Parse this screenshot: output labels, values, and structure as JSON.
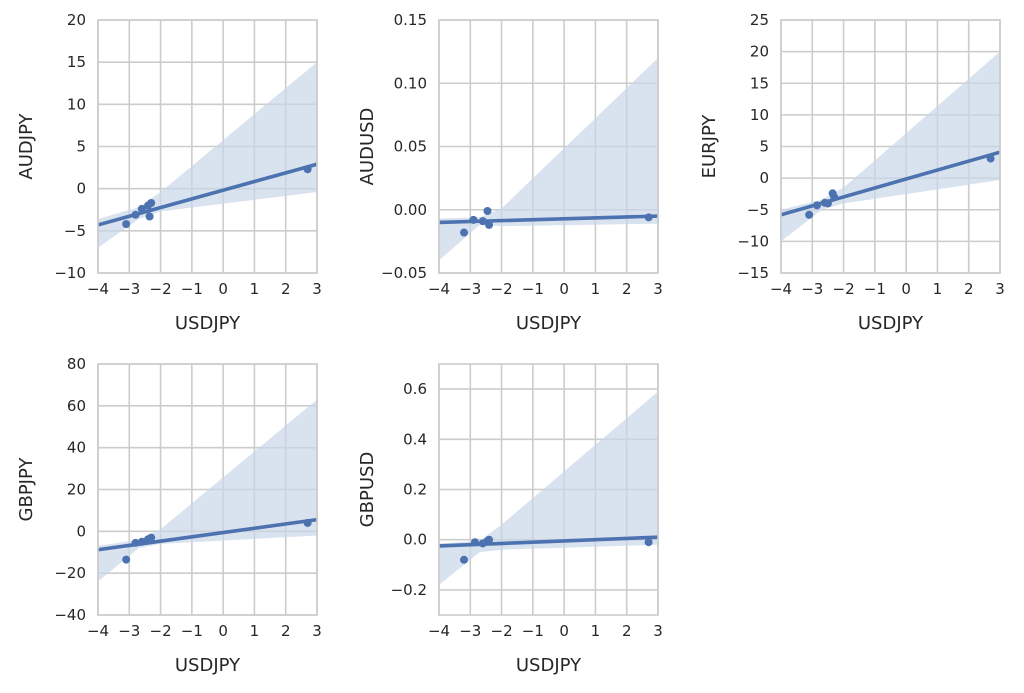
{
  "colors": {
    "line": "#4c72b0",
    "point": "#4c72b0",
    "band": "#c9d5e8",
    "grid": "#cccccc",
    "text": "#262626"
  },
  "chart_data": [
    {
      "type": "scatter",
      "xlabel": "USDJPY",
      "ylabel": "AUDJPY",
      "xlim": [
        -4,
        3
      ],
      "ylim": [
        -10,
        20
      ],
      "xticks": [
        -4,
        -3,
        -2,
        -1,
        0,
        1,
        2,
        3
      ],
      "yticks": [
        -10,
        -5,
        0,
        5,
        10,
        15,
        20
      ],
      "xtick_labels": [
        "−4",
        "−3",
        "−2",
        "−1",
        "0",
        "1",
        "2",
        "3"
      ],
      "ytick_labels": [
        "−10",
        "−5",
        "0",
        "5",
        "10",
        "15",
        "20"
      ],
      "points": [
        [
          -3.1,
          -4.2
        ],
        [
          -2.8,
          -3.1
        ],
        [
          -2.6,
          -2.4
        ],
        [
          -2.4,
          -2.0
        ],
        [
          -2.35,
          -3.3
        ],
        [
          -2.3,
          -1.7
        ],
        [
          2.7,
          2.3
        ]
      ],
      "fit": {
        "x": [
          -4,
          3
        ],
        "y": [
          -4.3,
          2.9
        ]
      },
      "ci": {
        "x": [
          -4,
          -2.7,
          -2.0,
          3
        ],
        "upper": [
          -3.6,
          -2.2,
          -0.4,
          15.0
        ],
        "lower": [
          -7.0,
          -3.6,
          -2.7,
          -0.4
        ]
      },
      "grid": true
    },
    {
      "type": "scatter",
      "xlabel": "USDJPY",
      "ylabel": "AUDUSD",
      "xlim": [
        -4,
        3
      ],
      "ylim": [
        -0.05,
        0.15
      ],
      "xticks": [
        -4,
        -3,
        -2,
        -1,
        0,
        1,
        2,
        3
      ],
      "yticks": [
        -0.05,
        0.0,
        0.05,
        0.1,
        0.15
      ],
      "xtick_labels": [
        "−4",
        "−3",
        "−2",
        "−1",
        "0",
        "1",
        "2",
        "3"
      ],
      "ytick_labels": [
        "−0.05",
        "0.00",
        "0.05",
        "0.10",
        "0.15"
      ],
      "points": [
        [
          -3.2,
          -0.018
        ],
        [
          -2.9,
          -0.008
        ],
        [
          -2.6,
          -0.009
        ],
        [
          -2.45,
          -0.001
        ],
        [
          -2.4,
          -0.012
        ],
        [
          2.7,
          -0.006
        ]
      ],
      "fit": {
        "x": [
          -4,
          3
        ],
        "y": [
          -0.01,
          -0.005
        ]
      },
      "ci": {
        "x": [
          -4,
          -2.7,
          -2.0,
          3
        ],
        "upper": [
          -0.007,
          -0.006,
          0.001,
          0.12
        ],
        "lower": [
          -0.04,
          -0.012,
          -0.013,
          -0.011
        ]
      },
      "grid": true
    },
    {
      "type": "scatter",
      "xlabel": "USDJPY",
      "ylabel": "EURJPY",
      "xlim": [
        -4,
        3
      ],
      "ylim": [
        -15,
        25
      ],
      "xticks": [
        -4,
        -3,
        -2,
        -1,
        0,
        1,
        2,
        3
      ],
      "yticks": [
        -15,
        -10,
        -5,
        0,
        5,
        10,
        15,
        20,
        25
      ],
      "xtick_labels": [
        "−4",
        "−3",
        "−2",
        "−1",
        "0",
        "1",
        "2",
        "3"
      ],
      "ytick_labels": [
        "−15",
        "−10",
        "−5",
        "0",
        "5",
        "10",
        "15",
        "20",
        "25"
      ],
      "points": [
        [
          -3.1,
          -5.8
        ],
        [
          -2.85,
          -4.3
        ],
        [
          -2.6,
          -3.9
        ],
        [
          -2.5,
          -4.0
        ],
        [
          -2.35,
          -2.4
        ],
        [
          -2.3,
          -3.0
        ],
        [
          2.7,
          3.1
        ]
      ],
      "fit": {
        "x": [
          -4,
          3
        ],
        "y": [
          -5.8,
          4.1
        ]
      },
      "ci": {
        "x": [
          -4,
          -2.7,
          -2.0,
          3
        ],
        "upper": [
          -5.0,
          -3.4,
          -1.5,
          20.0
        ],
        "lower": [
          -10.0,
          -5.0,
          -4.0,
          -0.3
        ]
      },
      "grid": true
    },
    {
      "type": "scatter",
      "xlabel": "USDJPY",
      "ylabel": "GBPJPY",
      "xlim": [
        -4,
        3
      ],
      "ylim": [
        -40,
        80
      ],
      "xticks": [
        -4,
        -3,
        -2,
        -1,
        0,
        1,
        2,
        3
      ],
      "yticks": [
        -40,
        -20,
        0,
        20,
        40,
        60,
        80
      ],
      "xtick_labels": [
        "−4",
        "−3",
        "−2",
        "−1",
        "0",
        "1",
        "2",
        "3"
      ],
      "ytick_labels": [
        "−40",
        "−20",
        "0",
        "20",
        "40",
        "60",
        "80"
      ],
      "points": [
        [
          -3.1,
          -13.5
        ],
        [
          -2.8,
          -5.5
        ],
        [
          -2.6,
          -5.0
        ],
        [
          -2.4,
          -3.8
        ],
        [
          -2.3,
          -3.0
        ],
        [
          2.7,
          4.0
        ]
      ],
      "fit": {
        "x": [
          -4,
          3
        ],
        "y": [
          -8.8,
          5.6
        ]
      },
      "ci": {
        "x": [
          -4,
          -2.7,
          -2.0,
          3
        ],
        "upper": [
          -7.0,
          -4.0,
          1.0,
          63.0
        ],
        "lower": [
          -24.0,
          -8.0,
          -6.0,
          -2.0
        ]
      },
      "grid": true
    },
    {
      "type": "scatter",
      "xlabel": "USDJPY",
      "ylabel": "GBPUSD",
      "xlim": [
        -4,
        3
      ],
      "ylim": [
        -0.3,
        0.7
      ],
      "xticks": [
        -4,
        -3,
        -2,
        -1,
        0,
        1,
        2,
        3
      ],
      "yticks": [
        -0.2,
        0.0,
        0.2,
        0.4,
        0.6
      ],
      "xtick_labels": [
        "−4",
        "−3",
        "−2",
        "−1",
        "0",
        "1",
        "2",
        "3"
      ],
      "ytick_labels": [
        "−0.2",
        "0.0",
        "0.2",
        "0.4",
        "0.6"
      ],
      "points": [
        [
          -3.2,
          -0.08
        ],
        [
          -2.85,
          -0.01
        ],
        [
          -2.6,
          -0.015
        ],
        [
          -2.45,
          -0.005
        ],
        [
          -2.4,
          0.0
        ],
        [
          2.7,
          -0.01
        ]
      ],
      "fit": {
        "x": [
          -4,
          3
        ],
        "y": [
          -0.025,
          0.01
        ]
      },
      "ci": {
        "x": [
          -4,
          -2.7,
          -2.0,
          3
        ],
        "upper": [
          -0.015,
          -0.005,
          0.06,
          0.59
        ],
        "lower": [
          -0.18,
          -0.05,
          -0.04,
          -0.02
        ]
      },
      "grid": true
    }
  ]
}
